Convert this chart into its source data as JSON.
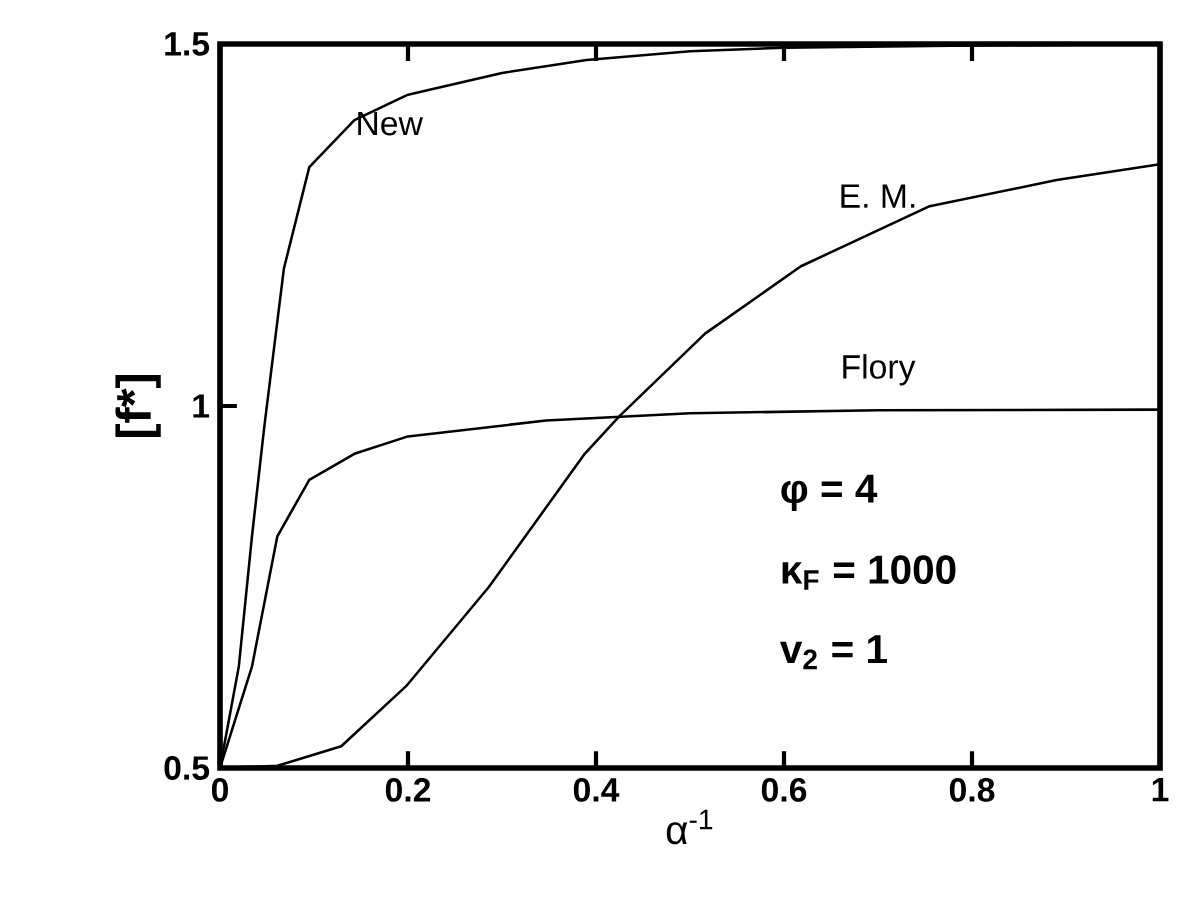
{
  "chart_data": {
    "type": "line",
    "xlabel": "α$^{-1}$",
    "ylabel": "[f*]",
    "xlim": [
      0,
      1
    ],
    "ylim": [
      0.5,
      1.5
    ],
    "xticks": [
      0,
      0.2,
      0.4,
      0.6,
      0.8,
      1
    ],
    "yticks": [
      0.5,
      1,
      1.5
    ],
    "grid": false,
    "legend": false,
    "marker": "none",
    "line_style": "solid",
    "series": [
      {
        "name": "New",
        "color": "#000000",
        "x": [
          0,
          0.02,
          0.034,
          0.047,
          0.068,
          0.095,
          0.143,
          0.2,
          0.3,
          0.39,
          0.5,
          0.6,
          0.8,
          1
        ],
        "values": [
          0.5,
          0.64,
          0.82,
          0.97,
          1.19,
          1.33,
          1.395,
          1.43,
          1.46,
          1.478,
          1.49,
          1.495,
          1.498,
          1.5
        ]
      },
      {
        "name": "E. M.",
        "color": "#000000",
        "x": [
          0,
          0.061,
          0.129,
          0.198,
          0.286,
          0.388,
          0.425,
          0.516,
          0.618,
          0.755,
          0.89,
          1
        ],
        "values": [
          0.5,
          0.503,
          0.53,
          0.613,
          0.75,
          0.934,
          0.986,
          1.1,
          1.193,
          1.276,
          1.312,
          1.334
        ]
      },
      {
        "name": "Flory",
        "color": "#000000",
        "x": [
          0,
          0.034,
          0.061,
          0.095,
          0.143,
          0.2,
          0.347,
          0.5,
          0.7,
          1
        ],
        "values": [
          0.5,
          0.64,
          0.82,
          0.898,
          0.934,
          0.958,
          0.98,
          0.99,
          0.994,
          0.995
        ]
      }
    ],
    "annotations": [
      "φ = 4",
      "κ$_{F}$ = 1000",
      "v$_{2}$ = 1"
    ]
  }
}
